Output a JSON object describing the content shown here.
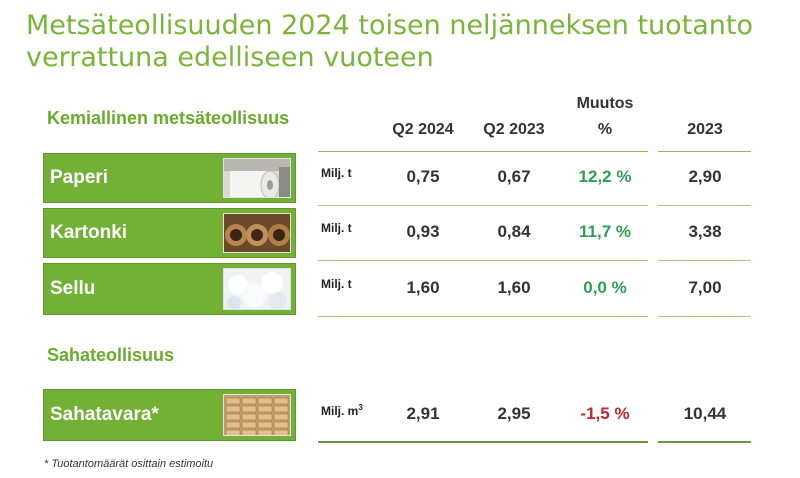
{
  "title": "Metsäteollisuuden 2024 toisen neljänneksen tuotanto verrattuna edelliseen vuoteen",
  "sections": {
    "chemical": "Kemiallinen metsäteollisuus",
    "sawmill": "Sahateollisuus"
  },
  "columns": {
    "q2_2024": "Q2 2024",
    "q2_2023": "Q2 2023",
    "change_top": "Muutos",
    "change_unit": "%",
    "year_2023": "2023"
  },
  "colors": {
    "title": "#7ab539",
    "label_box": "#72b136",
    "positive": "#2f9e55",
    "negative": "#c0262d"
  },
  "chart_data": {
    "type": "table",
    "title": "Metsäteollisuuden 2024 toisen neljänneksen tuotanto verrattuna edelliseen vuoteen",
    "columns": [
      "Q2 2024",
      "Q2 2023",
      "Muutos %",
      "2023"
    ],
    "rows": [
      {
        "product": "Paperi",
        "unit": "Milj. t",
        "q2_2024": "0,75",
        "q2_2023": "0,67",
        "change": "12,2 %",
        "year_2023": "2,90",
        "change_sign": "positive",
        "icon": "paper-roll-image"
      },
      {
        "product": "Kartonki",
        "unit": "Milj. t",
        "q2_2024": "0,93",
        "q2_2023": "0,84",
        "change": "11,7 %",
        "year_2023": "3,38",
        "change_sign": "positive",
        "icon": "cardboard-tube-image"
      },
      {
        "product": "Sellu",
        "unit": "Milj. t",
        "q2_2024": "1,60",
        "q2_2023": "1,60",
        "change": "0,0 %",
        "year_2023": "7,00",
        "change_sign": "positive",
        "icon": "pulp-fibre-image"
      },
      {
        "product": "Sahatavara*",
        "unit": "Milj. m",
        "unit_sup": "3",
        "q2_2024": "2,91",
        "q2_2023": "2,95",
        "change": "-1,5 %",
        "year_2023": "10,44",
        "change_sign": "negative",
        "icon": "lumber-stack-image"
      }
    ]
  },
  "footnote": "* Tuotantomäärät osittain estimoitu"
}
